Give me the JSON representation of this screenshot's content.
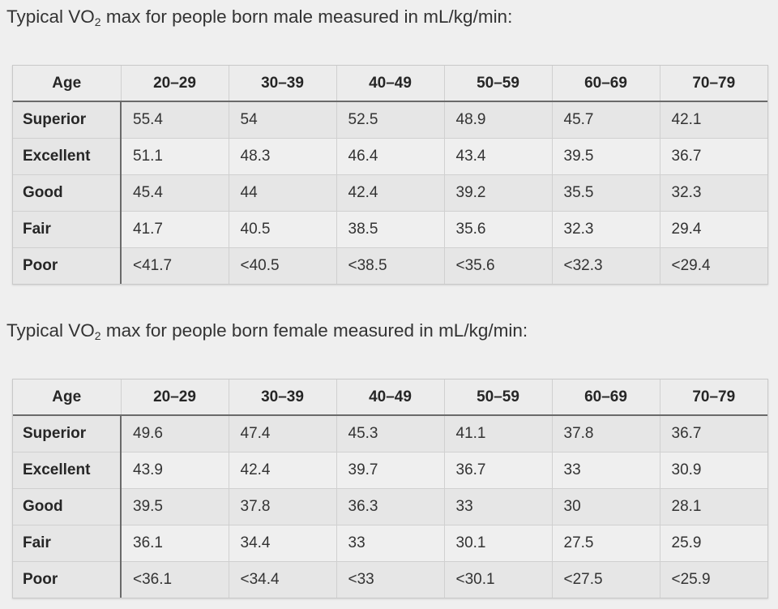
{
  "male": {
    "caption_pre": "Typical VO",
    "caption_sub": "2",
    "caption_post": " max for people born male measured in mL/kg/min:",
    "headers": [
      "Age",
      "20–29",
      "30–39",
      "40–49",
      "50–59",
      "60–69",
      "70–79"
    ],
    "rows": [
      {
        "label": "Superior",
        "values": [
          "55.4",
          "54",
          "52.5",
          "48.9",
          "45.7",
          "42.1"
        ]
      },
      {
        "label": "Excellent",
        "values": [
          "51.1",
          "48.3",
          "46.4",
          "43.4",
          "39.5",
          "36.7"
        ]
      },
      {
        "label": "Good",
        "values": [
          "45.4",
          "44",
          "42.4",
          "39.2",
          "35.5",
          "32.3"
        ]
      },
      {
        "label": "Fair",
        "values": [
          "41.7",
          "40.5",
          "38.5",
          "35.6",
          "32.3",
          "29.4"
        ]
      },
      {
        "label": "Poor",
        "values": [
          "<41.7",
          "<40.5",
          "<38.5",
          "<35.6",
          "<32.3",
          "<29.4"
        ]
      }
    ]
  },
  "female": {
    "caption_pre": "Typical VO",
    "caption_sub": "2",
    "caption_post": " max for people born female measured in mL/kg/min:",
    "headers": [
      "Age",
      "20–29",
      "30–39",
      "40–49",
      "50–59",
      "60–69",
      "70–79"
    ],
    "rows": [
      {
        "label": "Superior",
        "values": [
          "49.6",
          "47.4",
          "45.3",
          "41.1",
          "37.8",
          "36.7"
        ]
      },
      {
        "label": "Excellent",
        "values": [
          "43.9",
          "42.4",
          "39.7",
          "36.7",
          "33",
          "30.9"
        ]
      },
      {
        "label": "Good",
        "values": [
          "39.5",
          "37.8",
          "36.3",
          "33",
          "30",
          "28.1"
        ]
      },
      {
        "label": "Fair",
        "values": [
          "36.1",
          "34.4",
          "33",
          "30.1",
          "27.5",
          "25.9"
        ]
      },
      {
        "label": "Poor",
        "values": [
          "<36.1",
          "<34.4",
          "<33",
          "<30.1",
          "<27.5",
          "<25.9"
        ]
      }
    ]
  }
}
